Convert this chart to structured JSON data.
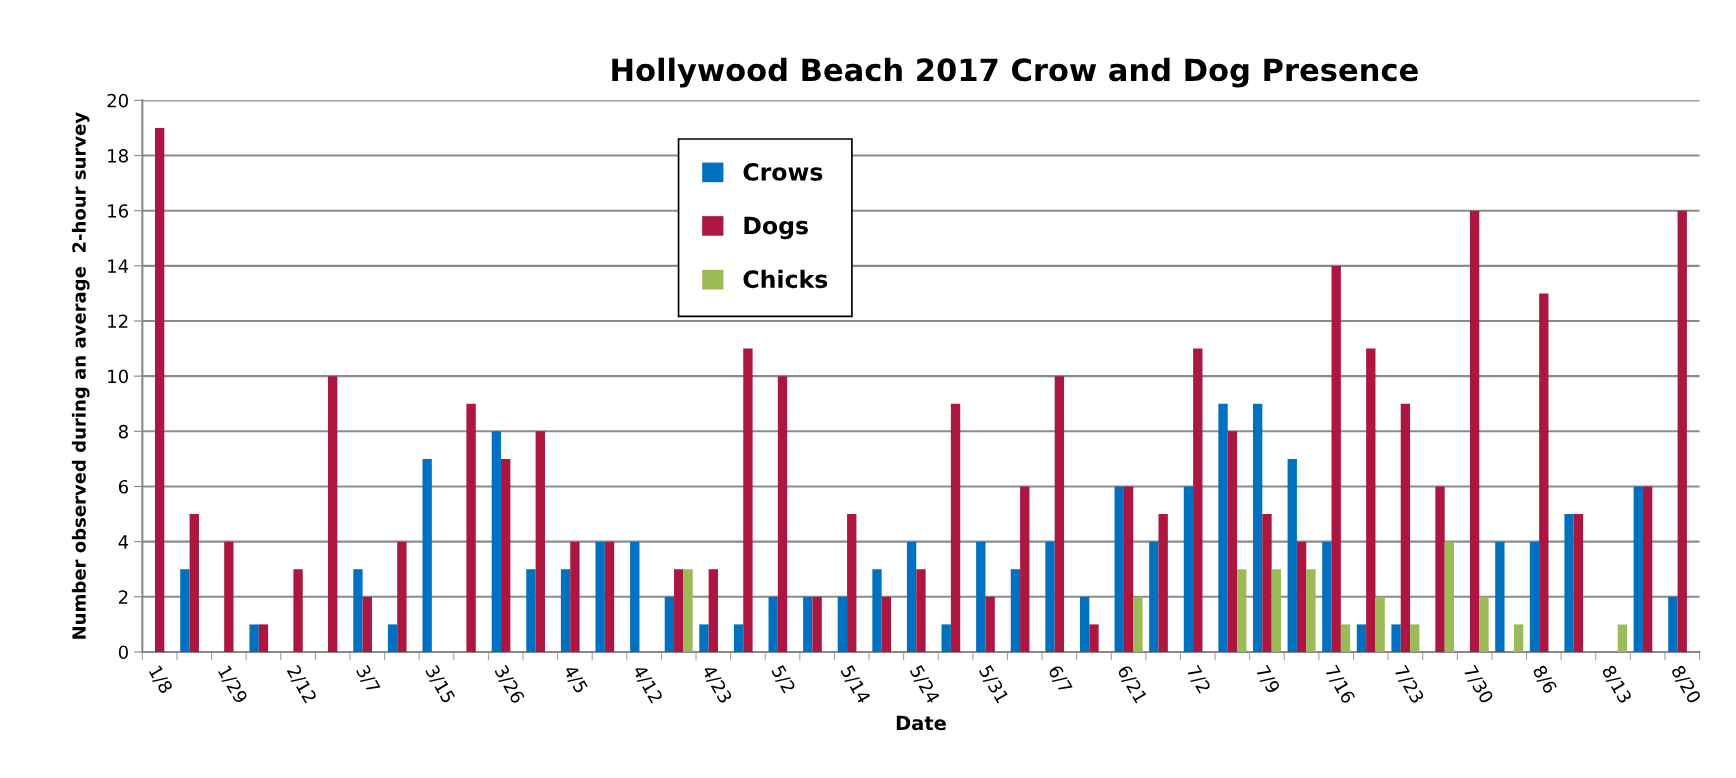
{
  "chart_data": {
    "type": "bar",
    "title": "Hollywood Beach 2017 Crow and Dog Presence",
    "xlabel": "Date",
    "ylabel": "Number observed during an average  2-hour survey",
    "categories": [
      "1/8",
      null,
      "1/29",
      null,
      "2/12",
      null,
      "3/7",
      null,
      "3/15",
      null,
      "3/26",
      null,
      "4/5",
      null,
      "4/12",
      null,
      "4/23",
      null,
      "5/2",
      null,
      "5/14",
      null,
      "5/24",
      null,
      "5/31",
      null,
      "6/7",
      null,
      "6/21",
      null,
      "7/2",
      null,
      "7/9",
      null,
      "7/16",
      null,
      "7/23",
      null,
      "7/30",
      null,
      "8/6",
      null,
      "8/13",
      null,
      "8/20"
    ],
    "series": [
      {
        "name": "Crows",
        "color": "#0070c0",
        "values": [
          0,
          3,
          0,
          1,
          0,
          0,
          3,
          1,
          7,
          0,
          8,
          3,
          3,
          4,
          4,
          2,
          1,
          1,
          2,
          2,
          2,
          3,
          4,
          1,
          4,
          3,
          4,
          2,
          6,
          4,
          6,
          9,
          9,
          7,
          4,
          1,
          1,
          0,
          0,
          4,
          4,
          5,
          0,
          6,
          2
        ]
      },
      {
        "name": "Dogs",
        "color": "#ac1640",
        "values": [
          19,
          5,
          4,
          1,
          3,
          10,
          2,
          4,
          0,
          9,
          7,
          8,
          4,
          4,
          0,
          3,
          3,
          11,
          10,
          2,
          5,
          2,
          3,
          9,
          2,
          6,
          10,
          1,
          6,
          5,
          11,
          8,
          5,
          4,
          14,
          11,
          9,
          6,
          16,
          0,
          13,
          5,
          0,
          6,
          16
        ]
      },
      {
        "name": "Chicks",
        "color": "#9bbb59",
        "values": [
          0,
          0,
          0,
          0,
          0,
          0,
          0,
          0,
          0,
          0,
          0,
          0,
          0,
          0,
          0,
          3,
          0,
          0,
          0,
          0,
          0,
          0,
          0,
          0,
          0,
          0,
          0,
          0,
          2,
          0,
          0,
          3,
          3,
          3,
          1,
          2,
          1,
          4,
          2,
          1,
          0,
          0,
          1,
          0,
          0
        ]
      }
    ],
    "ylim": [
      0,
      20
    ],
    "yticks": [
      0,
      2,
      4,
      6,
      8,
      10,
      12,
      14,
      16,
      18,
      20
    ],
    "grid": "y",
    "legend": "top"
  }
}
